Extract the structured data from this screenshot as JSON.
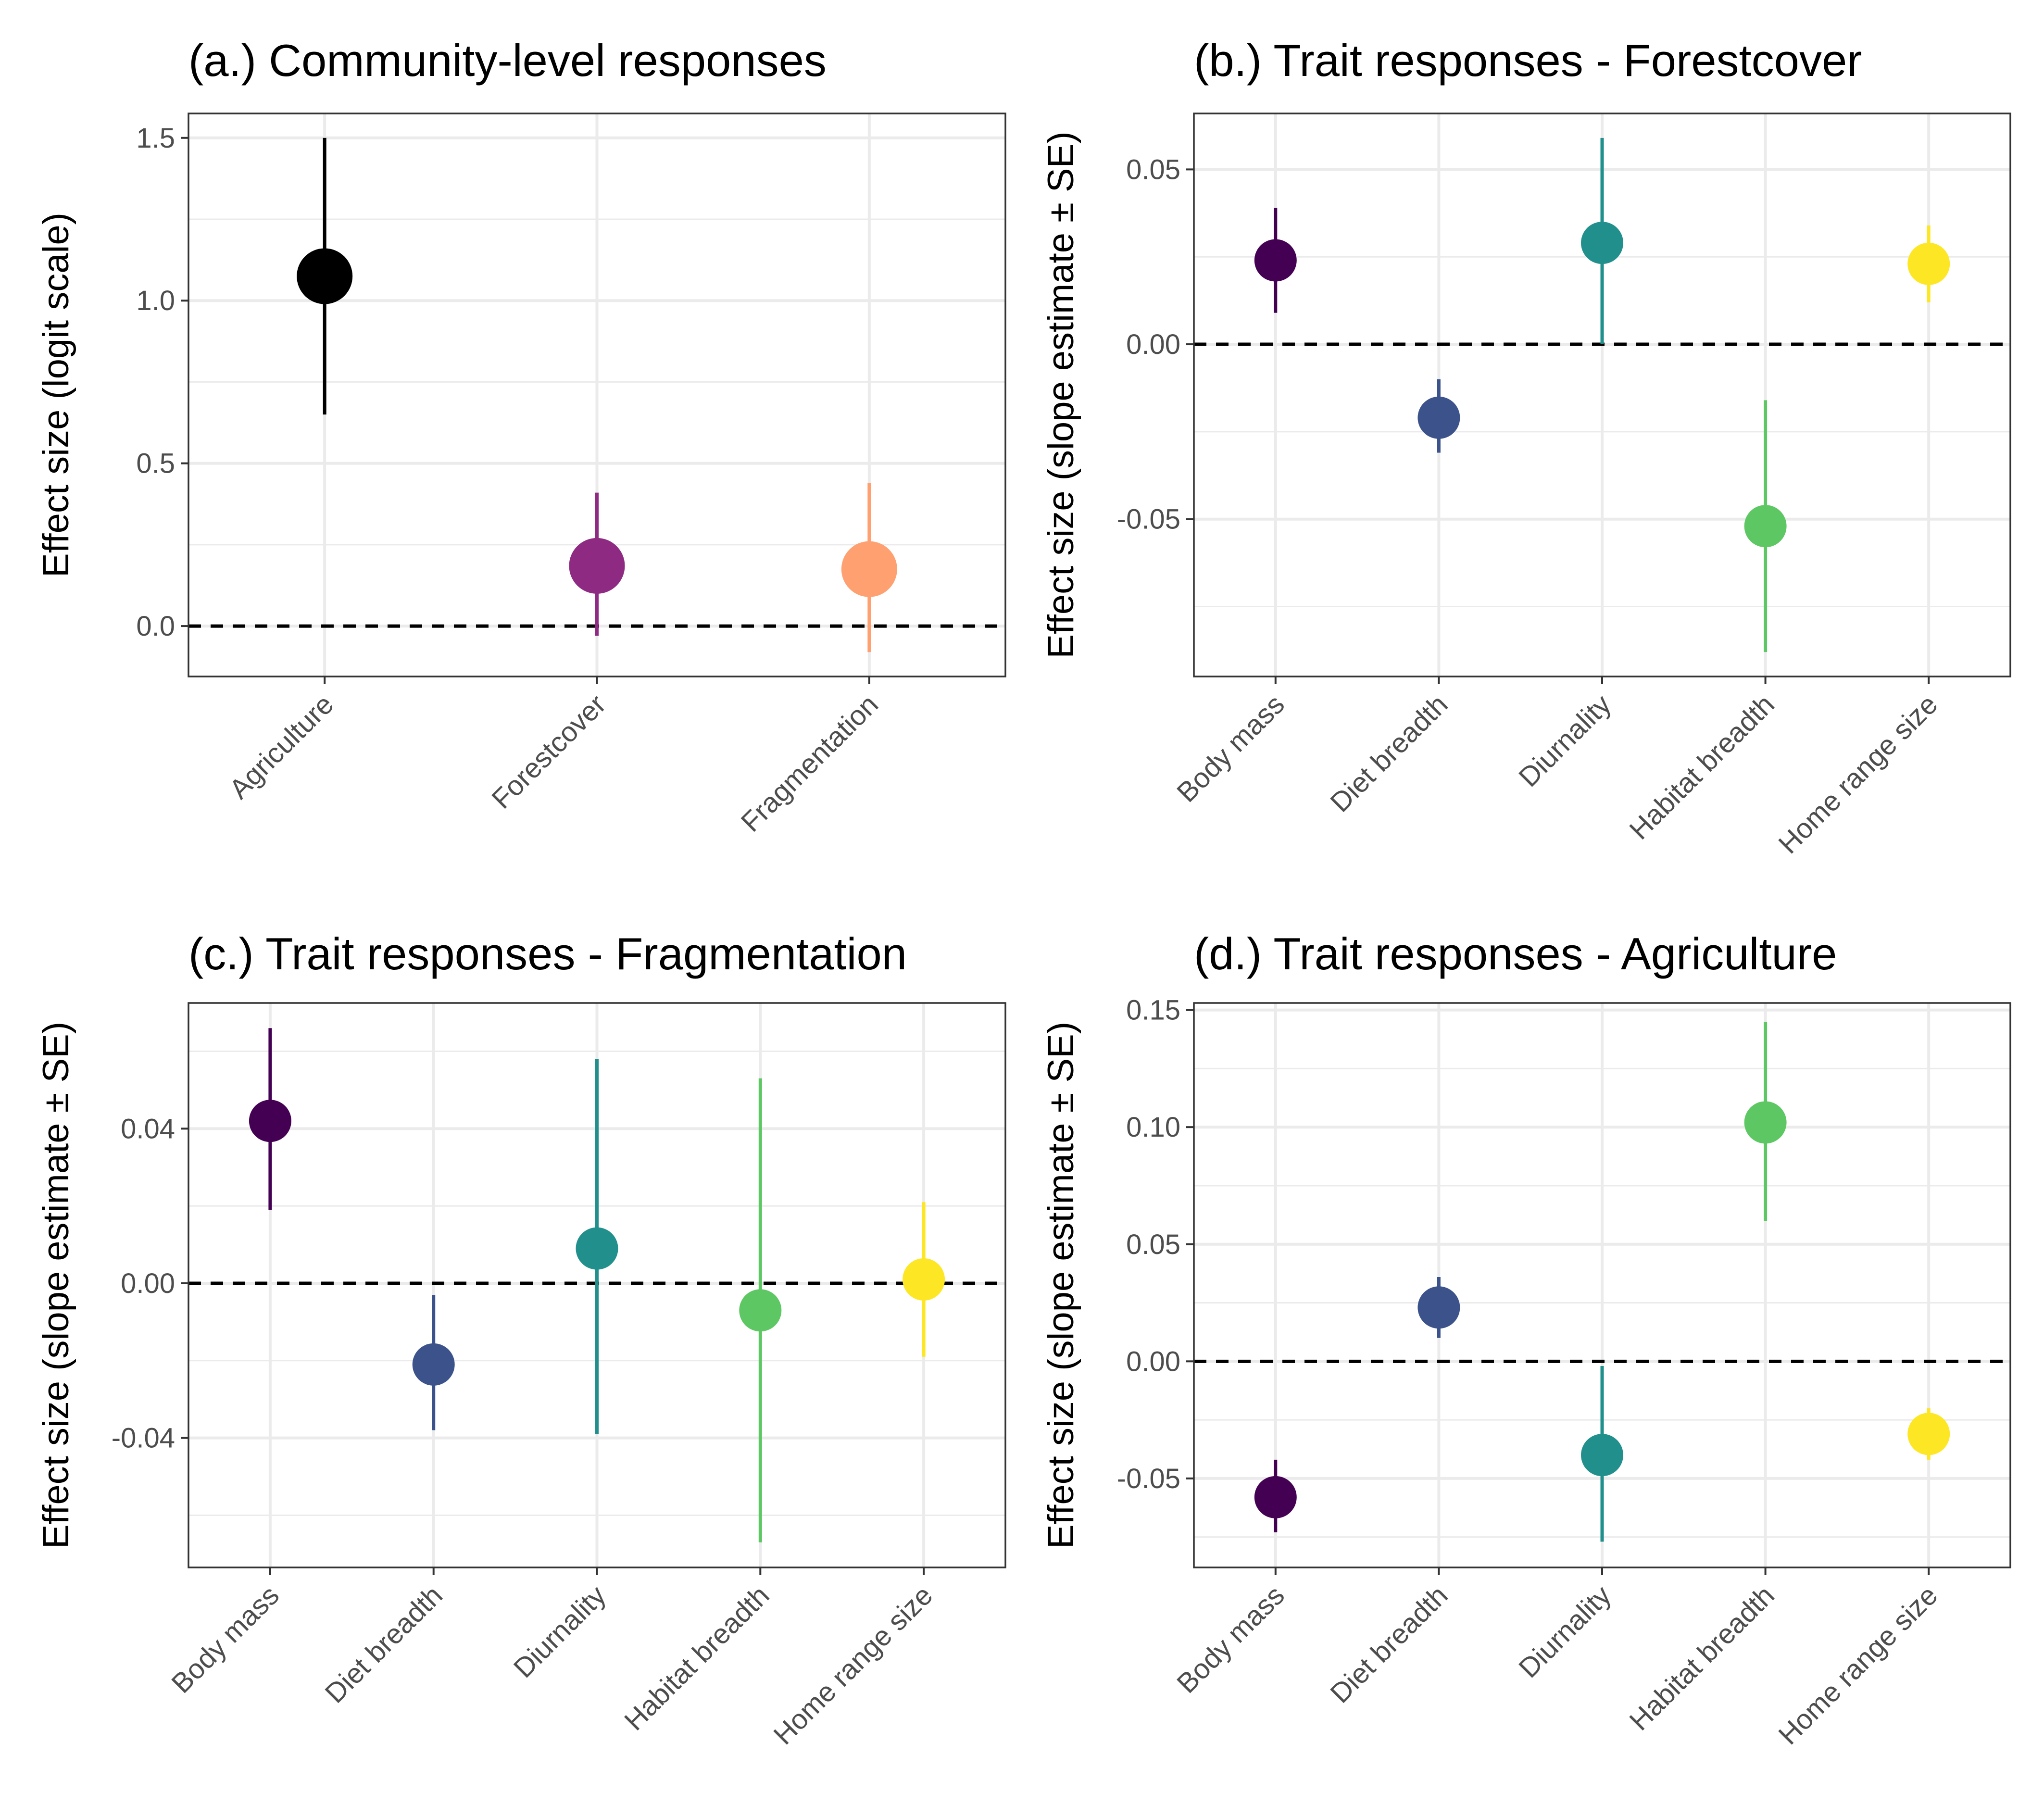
{
  "chart_data": [
    {
      "type": "scatter",
      "title": "(a.) Community-level responses",
      "xlabel": "",
      "ylabel": "Effect size (logit scale)",
      "categories": [
        "Agriculture",
        "Forestcover",
        "Fragmentation"
      ],
      "estimate": [
        1.075,
        0.185,
        0.175
      ],
      "lower": [
        0.65,
        -0.03,
        -0.08
      ],
      "upper": [
        1.5,
        0.41,
        0.44
      ],
      "colors": [
        "#000000",
        "#8E2A82",
        "#FFA070"
      ],
      "point_size": "large",
      "ylim": [
        -0.155,
        1.575
      ],
      "yticks": [
        0.0,
        0.5,
        1.0,
        1.5
      ],
      "ytick_labels": [
        "0.0",
        "0.5",
        "1.0",
        "1.5"
      ],
      "reference_line": 0,
      "grid": true
    },
    {
      "type": "scatter",
      "title": "(b.) Trait responses - Forestcover",
      "xlabel": "",
      "ylabel": "Effect size (slope estimate ± SE)",
      "categories": [
        "Body mass",
        "Diet breadth",
        "Diurnality",
        "Habitat breadth",
        "Home range size"
      ],
      "estimate": [
        0.024,
        -0.021,
        0.029,
        -0.052,
        0.023
      ],
      "lower": [
        0.009,
        -0.031,
        0.0,
        -0.088,
        0.012
      ],
      "upper": [
        0.039,
        -0.01,
        0.059,
        -0.016,
        0.034
      ],
      "colors": [
        "#440154",
        "#3B528B",
        "#21908C",
        "#5DC863",
        "#FDE725"
      ],
      "point_size": "medium",
      "ylim": [
        -0.095,
        0.066
      ],
      "yticks": [
        -0.05,
        0.0,
        0.05
      ],
      "ytick_labels": [
        "-0.05",
        "0.00",
        "0.05"
      ],
      "reference_line": 0,
      "grid": true
    },
    {
      "type": "scatter",
      "title": "(c.) Trait responses - Fragmentation",
      "xlabel": "",
      "ylabel": "Effect size (slope estimate ± SE)",
      "categories": [
        "Body mass",
        "Diet breadth",
        "Diurnality",
        "Habitat breadth",
        "Home range size"
      ],
      "estimate": [
        0.042,
        -0.021,
        0.009,
        -0.007,
        0.001
      ],
      "lower": [
        0.019,
        -0.038,
        -0.039,
        -0.067,
        -0.019
      ],
      "upper": [
        0.066,
        -0.003,
        0.058,
        0.053,
        0.021
      ],
      "colors": [
        "#440154",
        "#3B528B",
        "#21908C",
        "#5DC863",
        "#FDE725"
      ],
      "point_size": "medium",
      "ylim": [
        -0.0735,
        0.0725
      ],
      "yticks": [
        -0.04,
        0.0,
        0.04
      ],
      "ytick_labels": [
        "-0.04",
        "0.00",
        "0.04"
      ],
      "reference_line": 0,
      "grid": true
    },
    {
      "type": "scatter",
      "title": "(d.) Trait responses - Agriculture",
      "xlabel": "",
      "ylabel": "Effect size (slope estimate ± SE)",
      "categories": [
        "Body mass",
        "Diet breadth",
        "Diurnality",
        "Habitat breadth",
        "Home range size"
      ],
      "estimate": [
        -0.058,
        0.023,
        -0.04,
        0.102,
        -0.031
      ],
      "lower": [
        -0.073,
        0.01,
        -0.077,
        0.06,
        -0.042
      ],
      "upper": [
        -0.042,
        0.036,
        -0.002,
        0.145,
        -0.02
      ],
      "colors": [
        "#440154",
        "#3B528B",
        "#21908C",
        "#5DC863",
        "#FDE725"
      ],
      "point_size": "medium",
      "ylim": [
        -0.088,
        0.153
      ],
      "yticks": [
        -0.05,
        0.0,
        0.05,
        0.1,
        0.15
      ],
      "ytick_labels": [
        "-0.05",
        "0.00",
        "0.05",
        "0.10",
        "0.15"
      ],
      "reference_line": 0,
      "grid": true
    }
  ]
}
